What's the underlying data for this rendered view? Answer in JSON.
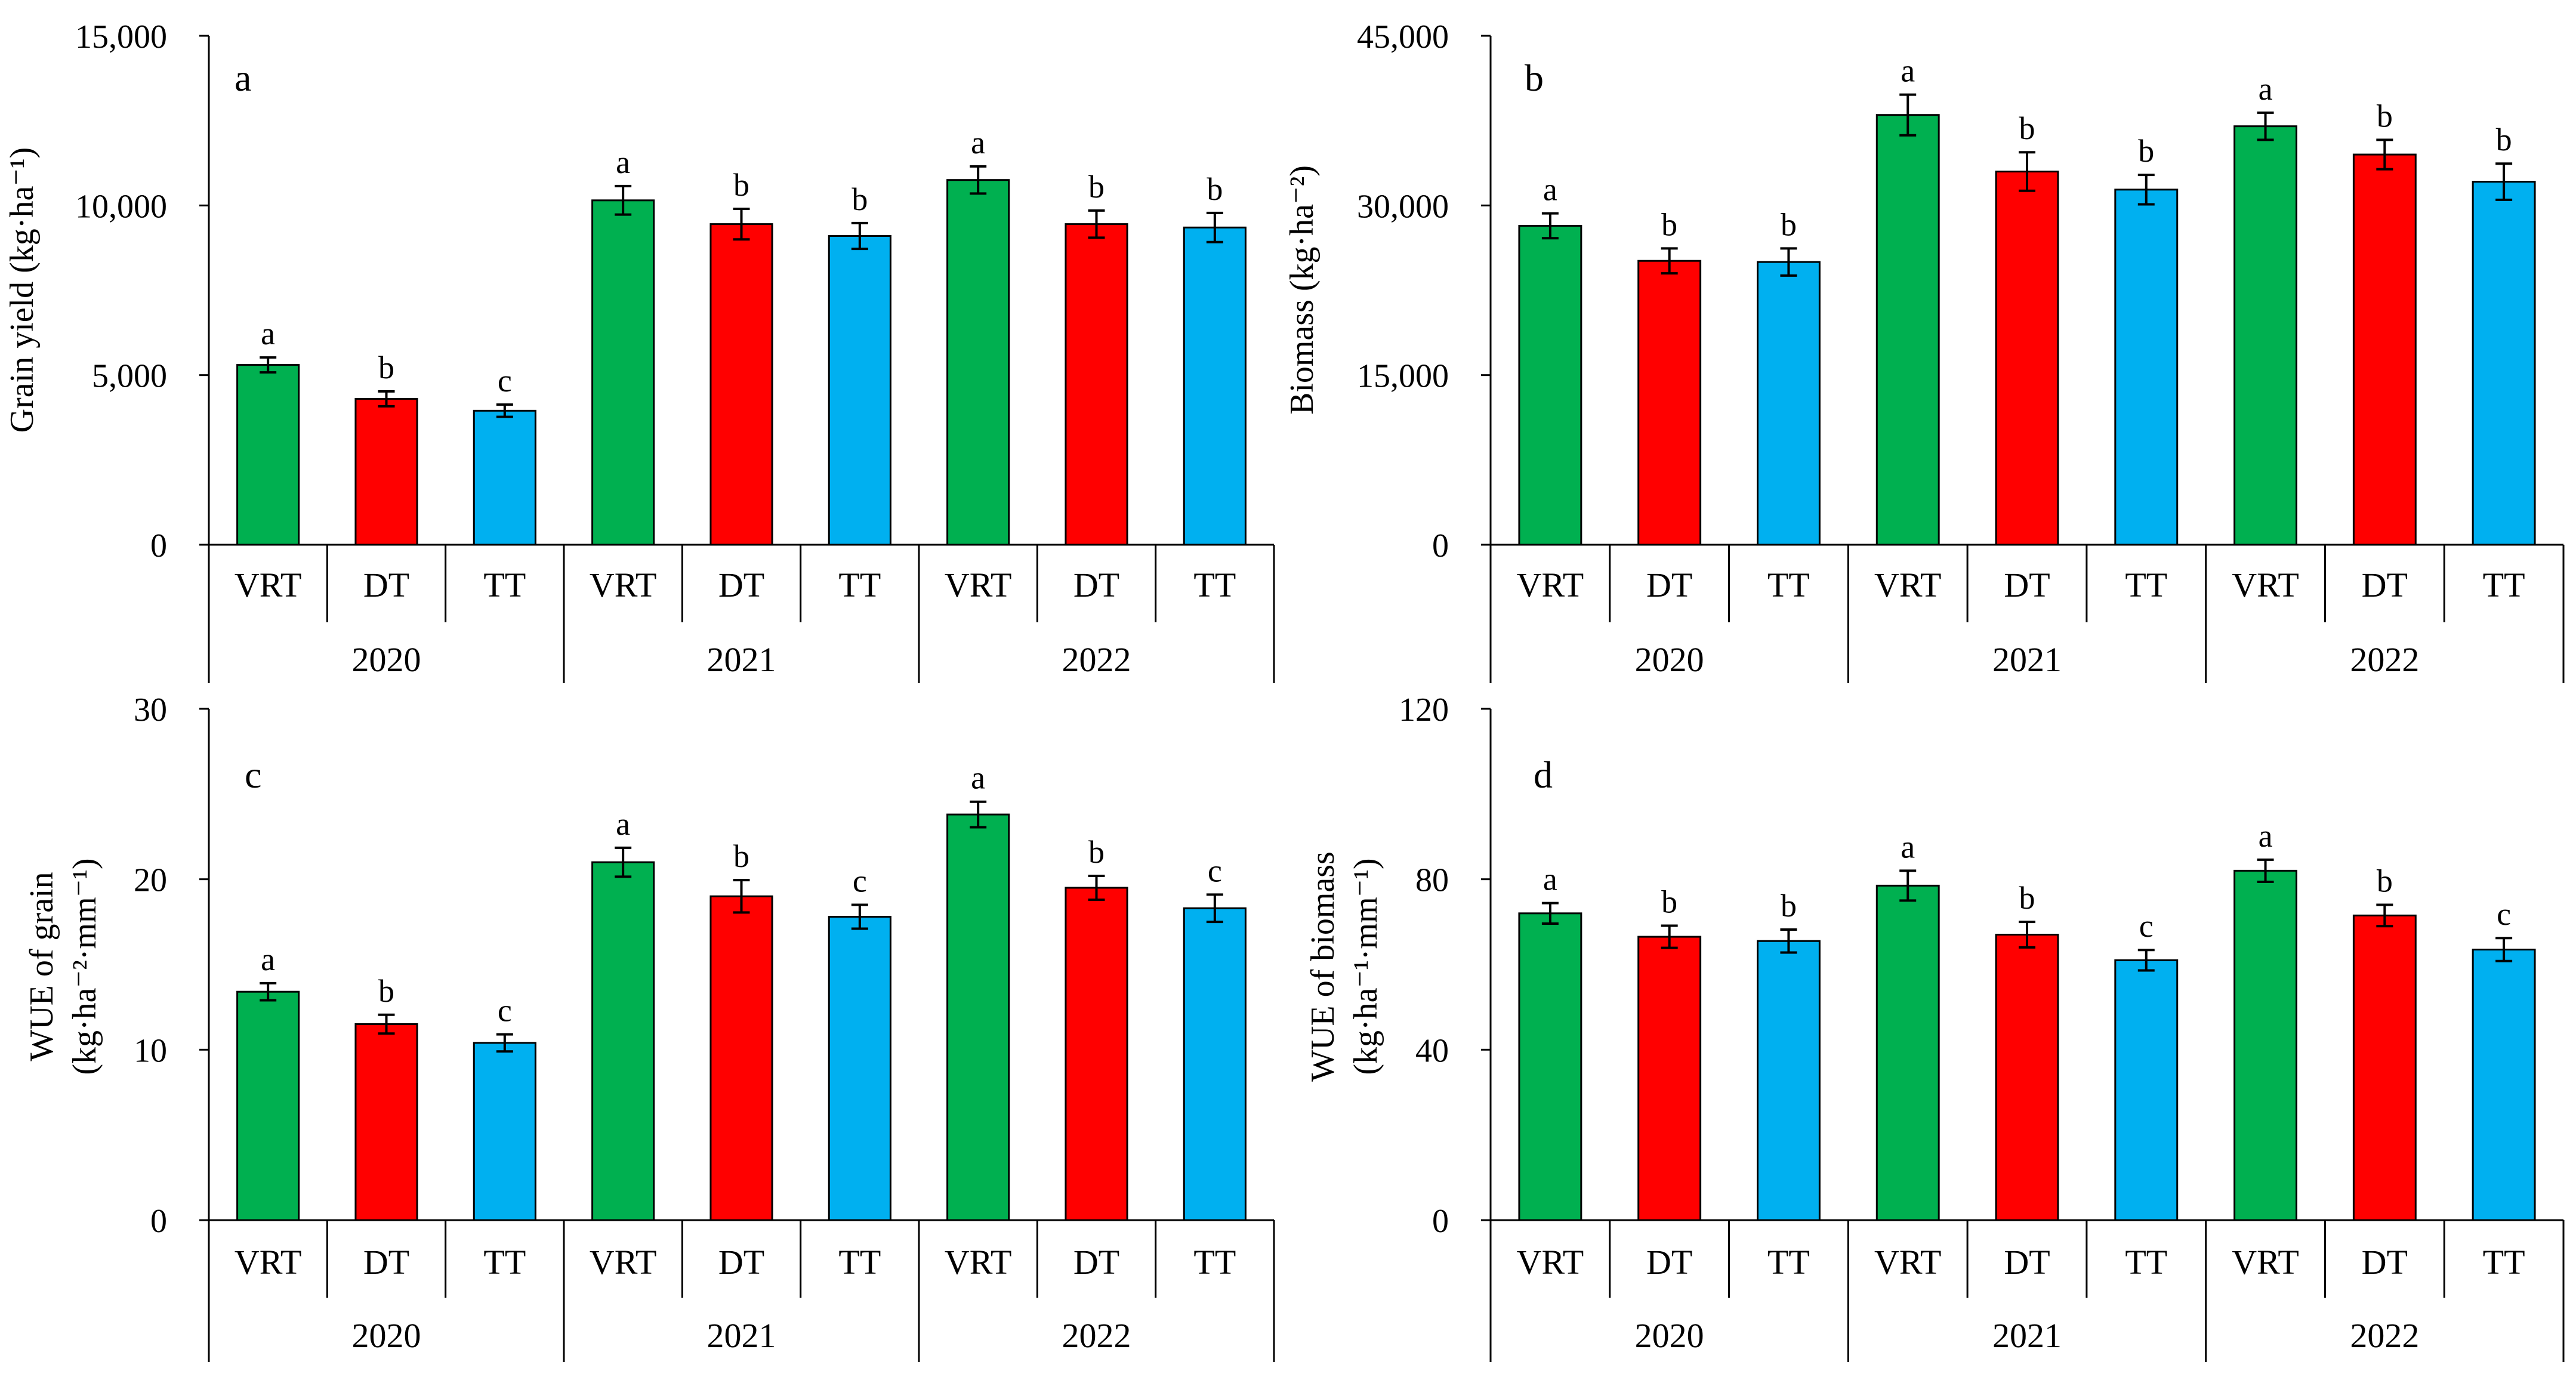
{
  "figure": {
    "colors": {
      "VRT": "#00B050",
      "DT": "#FF0000",
      "TT": "#00B0F0",
      "axis": "#000000"
    },
    "bar_groups": [
      "2020",
      "2021",
      "2022"
    ]
  },
  "chart_data": [
    {
      "type": "bar",
      "panel": "a",
      "ylabel": "Grain yield (kg·ha⁻¹)",
      "ylabel_lines": [
        "Grain yield (kg·ha⁻¹)"
      ],
      "ylim": [
        0,
        15000
      ],
      "yticks": [
        0,
        5000,
        10000,
        15000
      ],
      "ytick_labels": [
        "0",
        "5,000",
        "10,000",
        "15,000"
      ],
      "groups": [
        "2020",
        "2021",
        "2022"
      ],
      "categories": [
        "VRT",
        "DT",
        "TT",
        "VRT",
        "DT",
        "TT",
        "VRT",
        "DT",
        "TT"
      ],
      "treatment": [
        "VRT",
        "DT",
        "TT",
        "VRT",
        "DT",
        "TT",
        "VRT",
        "DT",
        "TT"
      ],
      "values": [
        5300,
        4300,
        3950,
        10150,
        9450,
        9100,
        10750,
        9450,
        9350
      ],
      "errors": [
        220,
        220,
        180,
        420,
        450,
        380,
        400,
        400,
        430
      ],
      "significance": [
        "a",
        "b",
        "c",
        "a",
        "b",
        "b",
        "a",
        "b",
        "b"
      ]
    },
    {
      "type": "bar",
      "panel": "b",
      "ylabel": "Biomass (kg·ha⁻²)",
      "ylabel_lines": [
        "Biomass (kg·ha⁻²)"
      ],
      "ylim": [
        0,
        45000
      ],
      "yticks": [
        0,
        15000,
        30000,
        45000
      ],
      "ytick_labels": [
        "0",
        "15,000",
        "30,000",
        "45,000"
      ],
      "groups": [
        "2020",
        "2021",
        "2022"
      ],
      "categories": [
        "VRT",
        "DT",
        "TT",
        "VRT",
        "DT",
        "TT",
        "VRT",
        "DT",
        "TT"
      ],
      "treatment": [
        "VRT",
        "DT",
        "TT",
        "VRT",
        "DT",
        "TT",
        "VRT",
        "DT",
        "TT"
      ],
      "values": [
        28200,
        25100,
        25000,
        38000,
        33000,
        31400,
        37000,
        34500,
        32100
      ],
      "errors": [
        1100,
        1100,
        1200,
        1800,
        1700,
        1300,
        1200,
        1300,
        1600
      ],
      "significance": [
        "a",
        "b",
        "b",
        "a",
        "b",
        "b",
        "a",
        "b",
        "b"
      ]
    },
    {
      "type": "bar",
      "panel": "c",
      "ylabel": "WUE of grain (kg·ha⁻²·mm⁻¹)",
      "ylabel_lines": [
        "WUE of grain",
        "(kg·ha⁻²·mm⁻¹)"
      ],
      "ylim": [
        0,
        30
      ],
      "yticks": [
        0,
        10,
        20,
        30
      ],
      "ytick_labels": [
        "0",
        "10",
        "20",
        "30"
      ],
      "groups": [
        "2020",
        "2021",
        "2022"
      ],
      "categories": [
        "VRT",
        "DT",
        "TT",
        "VRT",
        "DT",
        "TT",
        "VRT",
        "DT",
        "TT"
      ],
      "treatment": [
        "VRT",
        "DT",
        "TT",
        "VRT",
        "DT",
        "TT",
        "VRT",
        "DT",
        "TT"
      ],
      "values": [
        13.4,
        11.5,
        10.4,
        21.0,
        19.0,
        17.8,
        23.8,
        19.5,
        18.3
      ],
      "errors": [
        0.5,
        0.55,
        0.5,
        0.85,
        0.95,
        0.7,
        0.75,
        0.7,
        0.8
      ],
      "significance": [
        "a",
        "b",
        "c",
        "a",
        "b",
        "c",
        "a",
        "b",
        "c"
      ]
    },
    {
      "type": "bar",
      "panel": "d",
      "ylabel": "WUE of biomass (kg·ha⁻¹·mm⁻¹)",
      "ylabel_lines": [
        "WUE of biomass",
        "(kg·ha⁻¹·mm⁻¹)"
      ],
      "ylim": [
        0,
        120
      ],
      "yticks": [
        0,
        40,
        80,
        120
      ],
      "ytick_labels": [
        "0",
        "40",
        "80",
        "120"
      ],
      "groups": [
        "2020",
        "2021",
        "2022"
      ],
      "categories": [
        "VRT",
        "DT",
        "TT",
        "VRT",
        "DT",
        "TT",
        "VRT",
        "DT",
        "TT"
      ],
      "treatment": [
        "VRT",
        "DT",
        "TT",
        "VRT",
        "DT",
        "TT",
        "VRT",
        "DT",
        "TT"
      ],
      "values": [
        72,
        66.5,
        65.5,
        78.5,
        67,
        61,
        82,
        71.5,
        63.5
      ],
      "errors": [
        2.4,
        2.6,
        2.7,
        3.5,
        3.0,
        2.4,
        2.6,
        2.5,
        2.7
      ],
      "significance": [
        "a",
        "b",
        "b",
        "a",
        "b",
        "c",
        "a",
        "b",
        "c"
      ]
    }
  ]
}
